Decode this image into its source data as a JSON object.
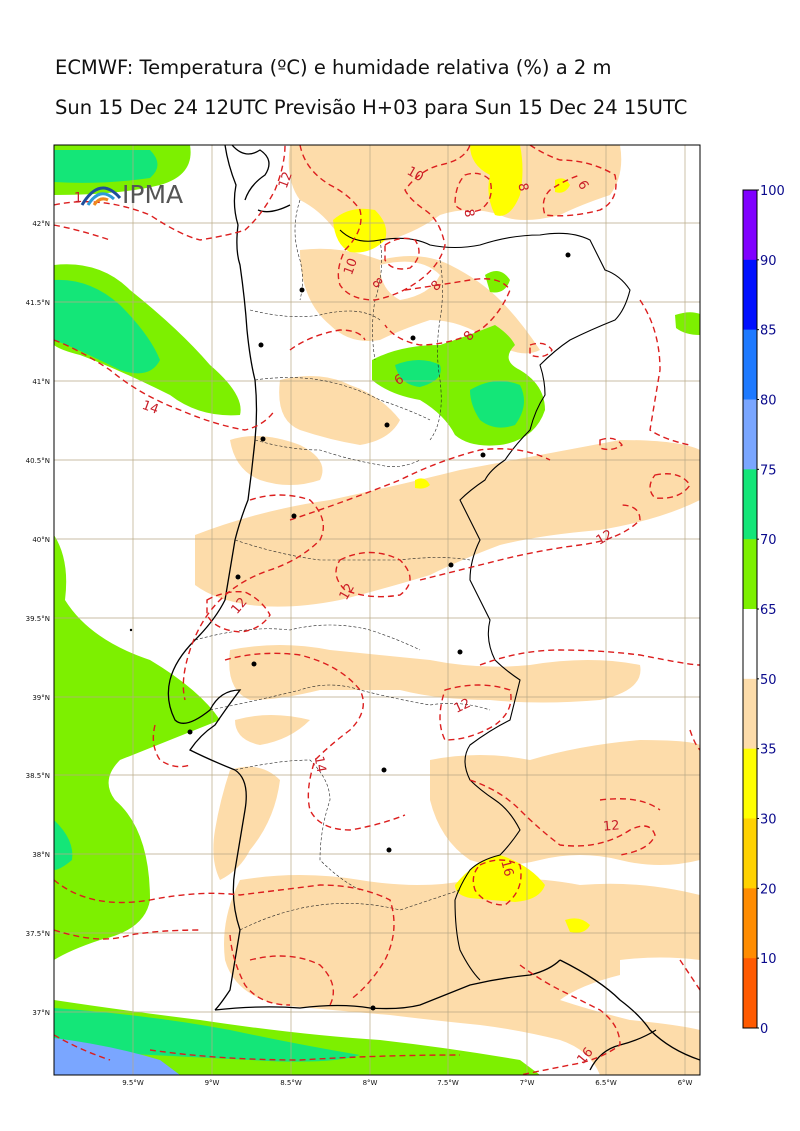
{
  "title_line1": "ECMWF: Temperatura (ºC) e humidade relativa (%) a 2 m",
  "title_line2": "Sun 15 Dec 24 12UTC Previsão H+03 para Sun 15 Dec 24 15UTC",
  "logo": {
    "text": "IPMA",
    "icon": "ipma-logo-icon"
  },
  "map": {
    "lat_labels": [
      "42°N",
      "41.5°N",
      "41°N",
      "40.5°N",
      "40°N",
      "39.5°N",
      "39°N",
      "38.5°N",
      "38°N",
      "37.5°N",
      "37°N"
    ],
    "lon_labels": [
      "9.5°W",
      "9°W",
      "8.5°W",
      "8°W",
      "7.5°W",
      "7°W",
      "6.5°W",
      "6°W"
    ],
    "contour_labels": [
      "12",
      "10",
      "10",
      "8",
      "8",
      "8",
      "8",
      "6",
      "8",
      "6",
      "14",
      "12",
      "12",
      "12",
      "12",
      "14",
      "12",
      "16",
      "16",
      "1"
    ]
  },
  "colorbar": {
    "labels": [
      "100",
      "90",
      "85",
      "80",
      "75",
      "70",
      "65",
      "50",
      "35",
      "30",
      "20",
      "10",
      "0"
    ],
    "colors": [
      "#8000ff",
      "#0010ff",
      "#1e7aff",
      "#7aa6ff",
      "#14e678",
      "#7df000",
      "#ffffff",
      "#fddcaa",
      "#ffff00",
      "#ffd200",
      "#ff8c00",
      "#ff5a00"
    ],
    "palette": {
      "humid_green": "#7df000",
      "humid_teal": "#14e678",
      "dry_beige": "#fddcaa",
      "dry_yellow": "#ffff00",
      "blue": "#7aa6ff",
      "contour_red": "#dc1e1e"
    }
  }
}
